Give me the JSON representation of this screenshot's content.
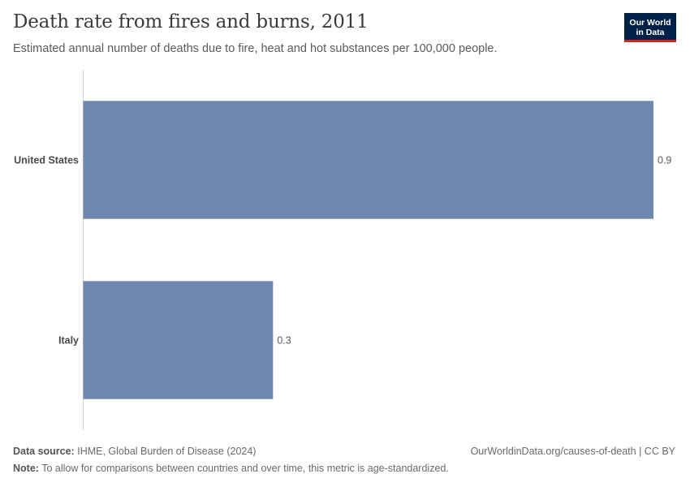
{
  "header": {
    "title": "Death rate from fires and burns, 2011",
    "subtitle": "Estimated annual number of deaths due to fire, heat and hot substances per 100,000 people.",
    "logo_line1": "Our World",
    "logo_line2": "in Data"
  },
  "footer": {
    "source_label": "Data source:",
    "source_text": "IHME, Global Burden of Disease (2024)",
    "license": "OurWorldinData.org/causes-of-death | CC BY",
    "note_label": "Note:",
    "note_text": "To allow for comparisons between countries and over time, this metric is age-standardized."
  },
  "colors": {
    "bar": "#6f88b0",
    "axis": "#cccccc",
    "brand": "#002147",
    "brand_accent": "#ce261e"
  },
  "chart_data": {
    "type": "bar",
    "orientation": "horizontal",
    "title": "Death rate from fires and burns, 2011",
    "subtitle": "Estimated annual number of deaths due to fire, heat and hot substances per 100,000 people.",
    "categories": [
      "United States",
      "Italy"
    ],
    "values": [
      0.9,
      0.3
    ],
    "value_labels": [
      "0.9",
      "0.3"
    ],
    "xlim": [
      0,
      0.9
    ],
    "grid": false,
    "legend": "none"
  }
}
